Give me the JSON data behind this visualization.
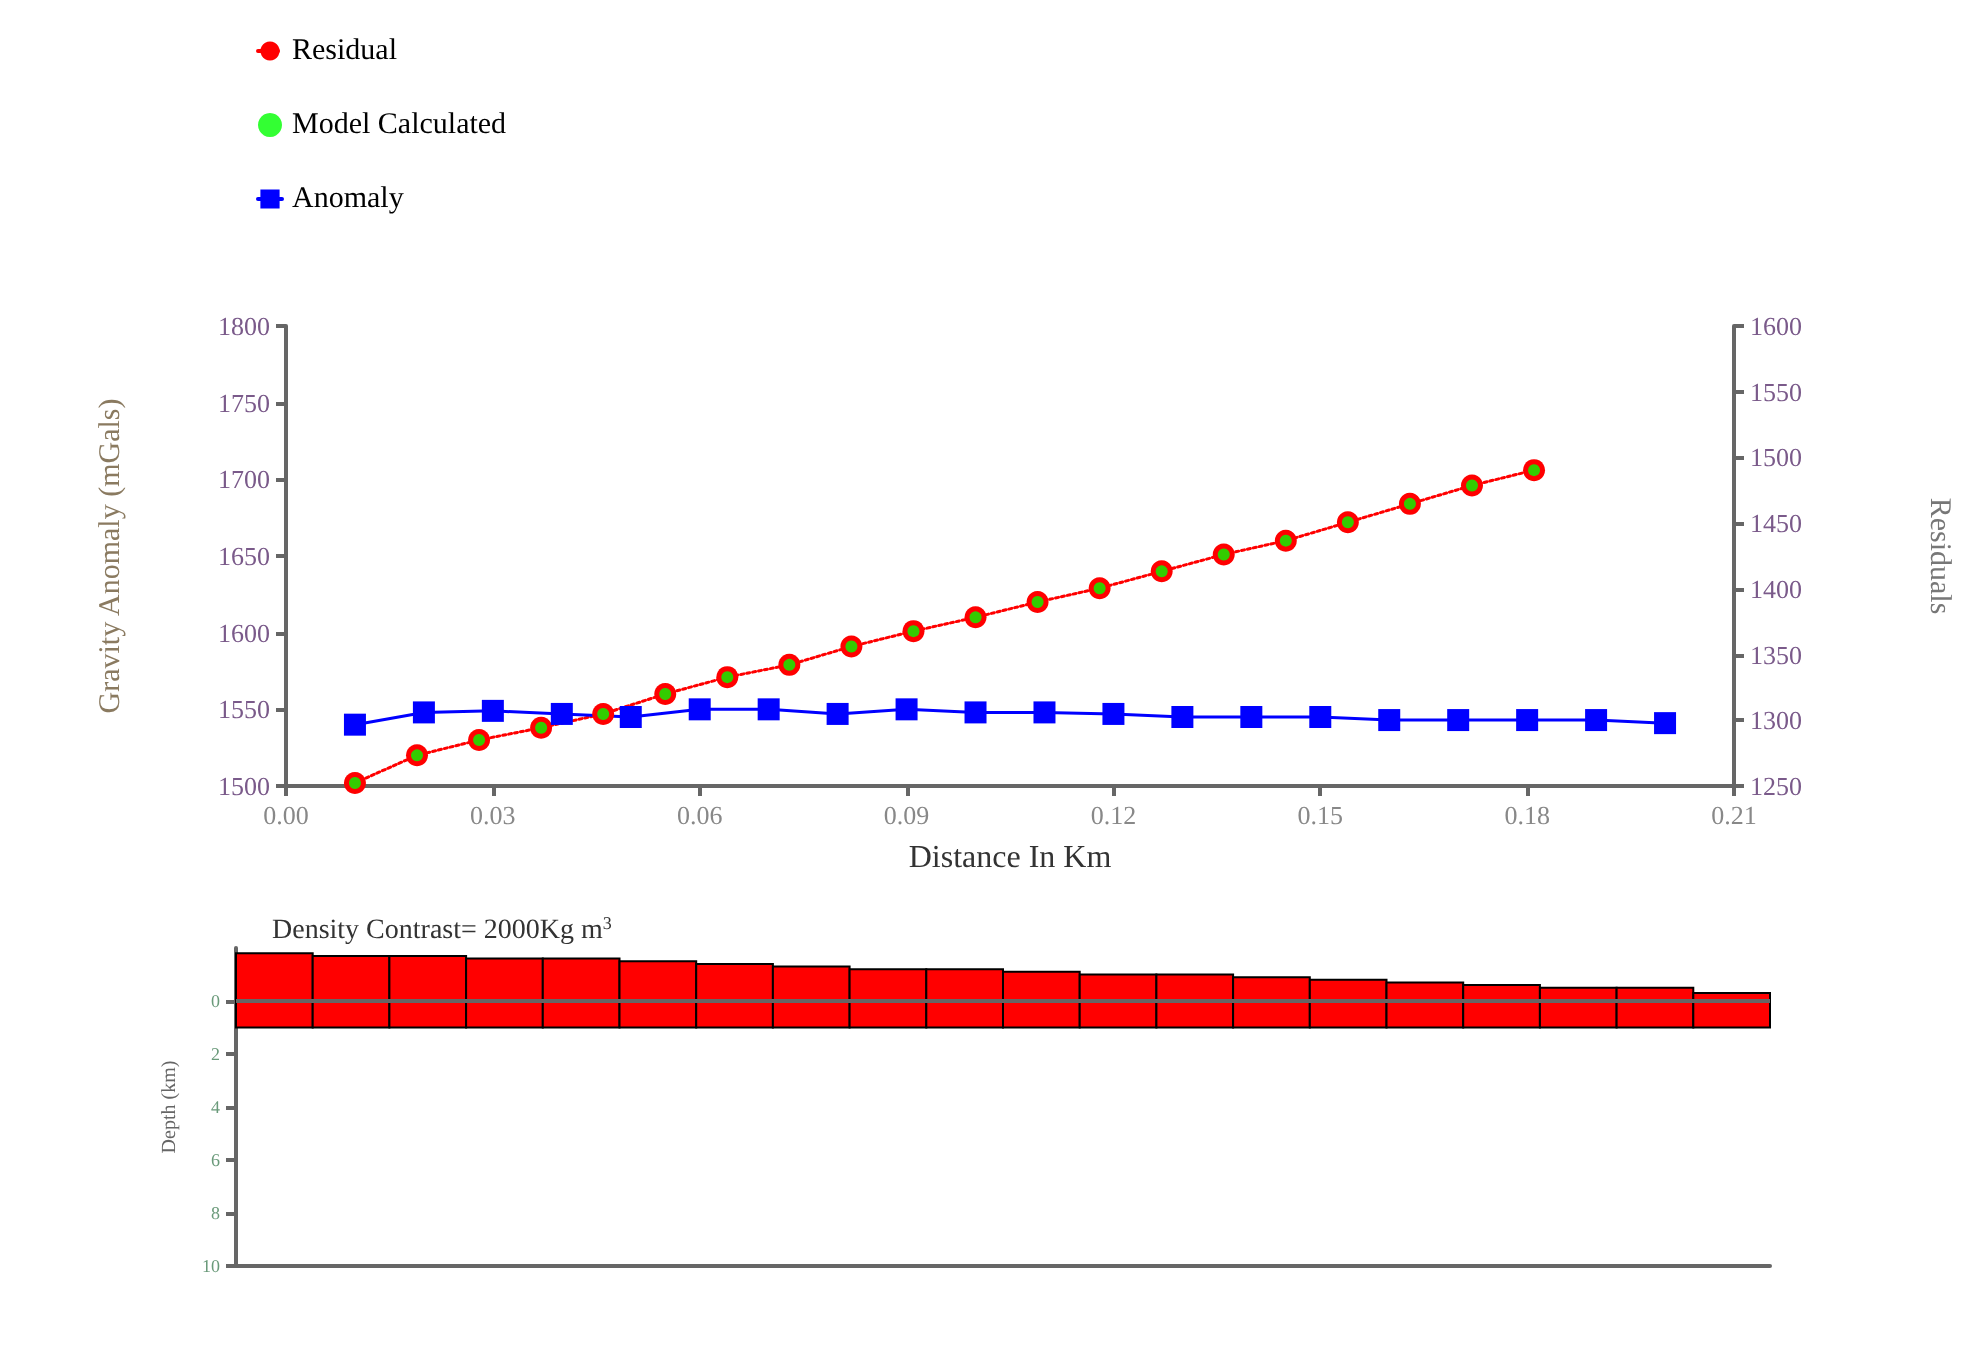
{
  "chart_data": [
    {
      "type": "line",
      "xlabel": "Distance In Km",
      "ylabel": "Gravity Anomaly (mGals)",
      "y2label": "Residuals",
      "xlim": [
        0,
        0.21
      ],
      "xticks": [
        {
          "value": 0,
          "label": "0.00"
        },
        {
          "value": 0.03,
          "label": "0.03"
        },
        {
          "value": 0.06,
          "label": "0.06"
        },
        {
          "value": 0.09,
          "label": "0.09"
        },
        {
          "value": 0.12,
          "label": "0.12"
        },
        {
          "value": 0.15,
          "label": "0.15"
        },
        {
          "value": 0.18,
          "label": "0.18"
        },
        {
          "value": 0.21,
          "label": "0.21"
        }
      ],
      "ylim": [
        1500,
        1800
      ],
      "yticks": [
        1500,
        1550,
        1600,
        1650,
        1700,
        1750,
        1800
      ],
      "y2lim": [
        1250,
        1600
      ],
      "y2ticks": [
        1250,
        1300,
        1350,
        1400,
        1450,
        1500,
        1550,
        1600
      ],
      "grid": false,
      "legend": "top left",
      "series": [
        {
          "name": "Residual",
          "color": "#ff0000",
          "marker": "circle",
          "line_style": "dotted",
          "x": [
            0.01,
            0.019,
            0.028,
            0.037,
            0.046,
            0.055,
            0.064,
            0.073,
            0.082,
            0.091,
            0.1,
            0.109,
            0.118,
            0.127,
            0.136,
            0.145,
            0.154,
            0.163,
            0.172,
            0.181
          ],
          "values": [
            1502,
            1520,
            1530,
            1538,
            1547,
            1560,
            1571,
            1579,
            1591,
            1601,
            1610,
            1620,
            1629,
            1640,
            1651,
            1660,
            1672,
            1684,
            1696,
            1706
          ]
        },
        {
          "name": "Model Calculated",
          "type": "scatter",
          "color": "#00ff00",
          "marker": "circle",
          "x": [
            0.01,
            0.019,
            0.028,
            0.037,
            0.046,
            0.055,
            0.064,
            0.073,
            0.082,
            0.091,
            0.1,
            0.109,
            0.118,
            0.127,
            0.136,
            0.145,
            0.154,
            0.163,
            0.172,
            0.181
          ],
          "values": [
            1502,
            1520,
            1530,
            1538,
            1547,
            1560,
            1571,
            1579,
            1591,
            1601,
            1610,
            1620,
            1629,
            1640,
            1651,
            1660,
            1672,
            1684,
            1696,
            1706
          ]
        },
        {
          "name": "Anomaly",
          "color": "#0000ff",
          "marker": "square",
          "line_style": "solid",
          "x": [
            0.01,
            0.02,
            0.03,
            0.04,
            0.05,
            0.06,
            0.07,
            0.08,
            0.09,
            0.1,
            0.11,
            0.12,
            0.13,
            0.14,
            0.15,
            0.16,
            0.17,
            0.18,
            0.19,
            0.2
          ],
          "values": [
            1540,
            1548,
            1549,
            1547,
            1545,
            1550,
            1550,
            1547,
            1550,
            1548,
            1548,
            1547,
            1545,
            1545,
            1545,
            1543,
            1543,
            1543,
            1543,
            1541
          ]
        }
      ]
    },
    {
      "type": "bar",
      "title": "Density Contrast= 2000Kg m$^{3}$",
      "ylabel": "Depth (km)",
      "categories": [
        null,
        null,
        null,
        null,
        null,
        null,
        null,
        null,
        null,
        null,
        null,
        null,
        null,
        null,
        null,
        null,
        null,
        null,
        null,
        null
      ],
      "base": [
        -1.8,
        -1.7,
        -1.7,
        -1.6,
        -1.6,
        -1.5,
        -1.4,
        -1.3,
        -1.2,
        -1.2,
        -1.1,
        -1.0,
        -1.0,
        -0.9,
        -0.8,
        -0.7,
        -0.6,
        -0.5,
        -0.5,
        -0.3
      ],
      "values": [
        2.8,
        2.7,
        2.7,
        2.6,
        2.6,
        2.5,
        2.4,
        2.3,
        2.2,
        2.2,
        2.1,
        2.0,
        2.0,
        1.9,
        1.8,
        1.7,
        1.6,
        1.5,
        1.5,
        1.3
      ],
      "color": "#ff0000",
      "ref_lines": [
        {
          "axis": "y",
          "value": 0
        }
      ],
      "ylim": [
        10,
        -2
      ],
      "yticks": [
        0,
        2,
        4,
        6,
        8,
        10
      ],
      "tick_labels": "y",
      "grid": false
    }
  ]
}
